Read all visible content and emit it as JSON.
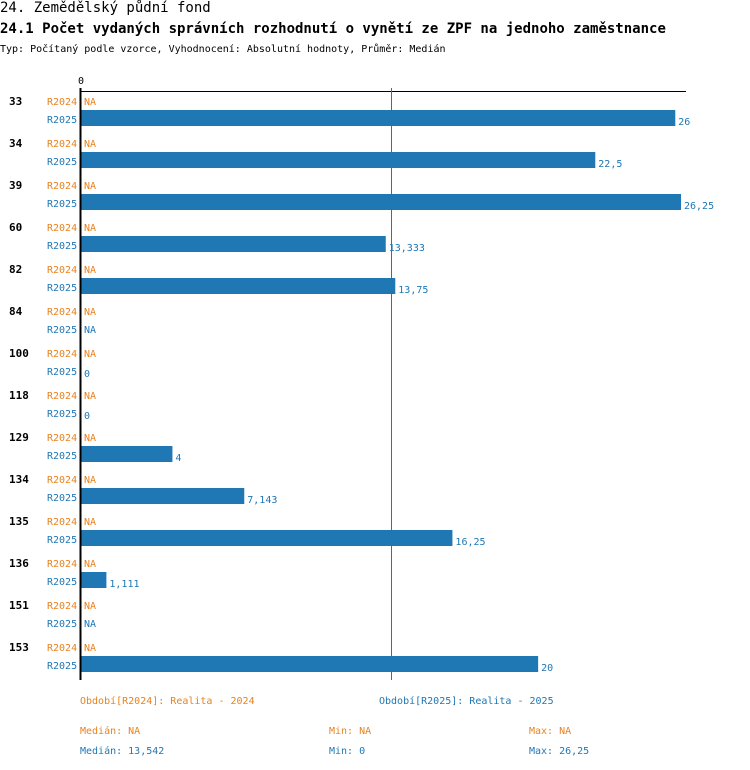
{
  "header": {
    "section_title": "24. Zemědělský půdní fond",
    "chart_title": "24.1 Počet vydaných správních rozhodnutí o vynětí ze ZPF na jednoho zaměstnance",
    "subtitle": "Typ: Počítaný podle vzorce, Vyhodnocení: Absolutní hodnoty, Průměr: Medián"
  },
  "colors": {
    "r2024": "#e8821e",
    "r2025": "#1f77b4",
    "axis": "#000000"
  },
  "chart_data": {
    "type": "bar",
    "orientation": "horizontal",
    "axis_zero_label": "0",
    "xlim": [
      0,
      26.25
    ],
    "median_line": 13.542,
    "categories": [
      "33",
      "34",
      "39",
      "60",
      "82",
      "84",
      "100",
      "118",
      "129",
      "134",
      "135",
      "136",
      "151",
      "153"
    ],
    "series": [
      {
        "name": "R2024",
        "values": [
          null,
          null,
          null,
          null,
          null,
          null,
          null,
          null,
          null,
          null,
          null,
          null,
          null,
          null
        ],
        "labels": [
          "NA",
          "NA",
          "NA",
          "NA",
          "NA",
          "NA",
          "NA",
          "NA",
          "NA",
          "NA",
          "NA",
          "NA",
          "NA",
          "NA"
        ]
      },
      {
        "name": "R2025",
        "values": [
          26,
          22.5,
          26.25,
          13.333,
          13.75,
          null,
          0,
          0,
          4,
          7.143,
          16.25,
          1.111,
          null,
          20
        ],
        "labels": [
          "26",
          "22,5",
          "26,25",
          "13,333",
          "13,75",
          "NA",
          "0",
          "0",
          "4",
          "7,143",
          "16,25",
          "1,111",
          "NA",
          "20"
        ]
      }
    ]
  },
  "legend": {
    "r2024_period": "Období[R2024]: Realita - 2024",
    "r2025_period": "Období[R2025]: Realita - 2025",
    "r2024_median": "Medián: NA",
    "r2024_min": "Min: NA",
    "r2024_max": "Max: NA",
    "r2025_median": "Medián: 13,542",
    "r2025_min": "Min: 0",
    "r2025_max": "Max: 26,25"
  }
}
